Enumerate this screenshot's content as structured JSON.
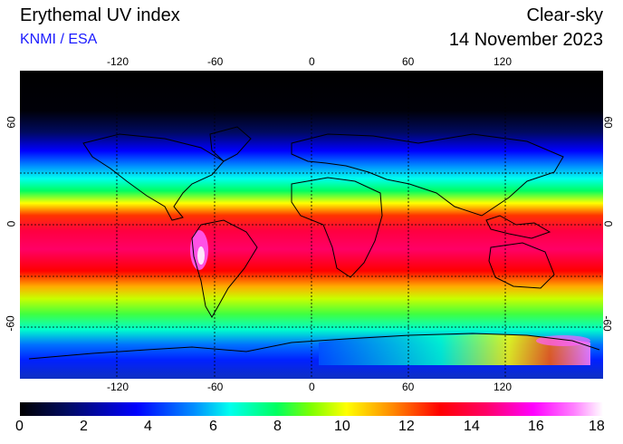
{
  "header": {
    "title": "Erythemal UV index",
    "subtitle": "KNMI / ESA",
    "product": "Clear-sky",
    "date": "14 November 2023"
  },
  "map": {
    "lon_ticks": [
      "-120",
      "-60",
      "0",
      "60",
      "120"
    ],
    "lat_ticks": [
      "60",
      "0",
      "-60"
    ],
    "lon_values": [
      -120,
      -60,
      0,
      60,
      120
    ],
    "lat_values": [
      60,
      30,
      0,
      -30,
      -60
    ],
    "grid": true,
    "projection": "equirectangular"
  },
  "colorbar": {
    "ticks": [
      "0",
      "2",
      "4",
      "6",
      "8",
      "10",
      "12",
      "14",
      "16",
      "18"
    ],
    "min": 0,
    "max": 18,
    "colors": [
      "#000000",
      "#000a60",
      "#0000ff",
      "#0090ff",
      "#00ffee",
      "#00ff60",
      "#80ff00",
      "#ffff00",
      "#ff8800",
      "#ff0000",
      "#ff0066",
      "#ff00ff",
      "#ff80ff",
      "#ffffff"
    ]
  }
}
